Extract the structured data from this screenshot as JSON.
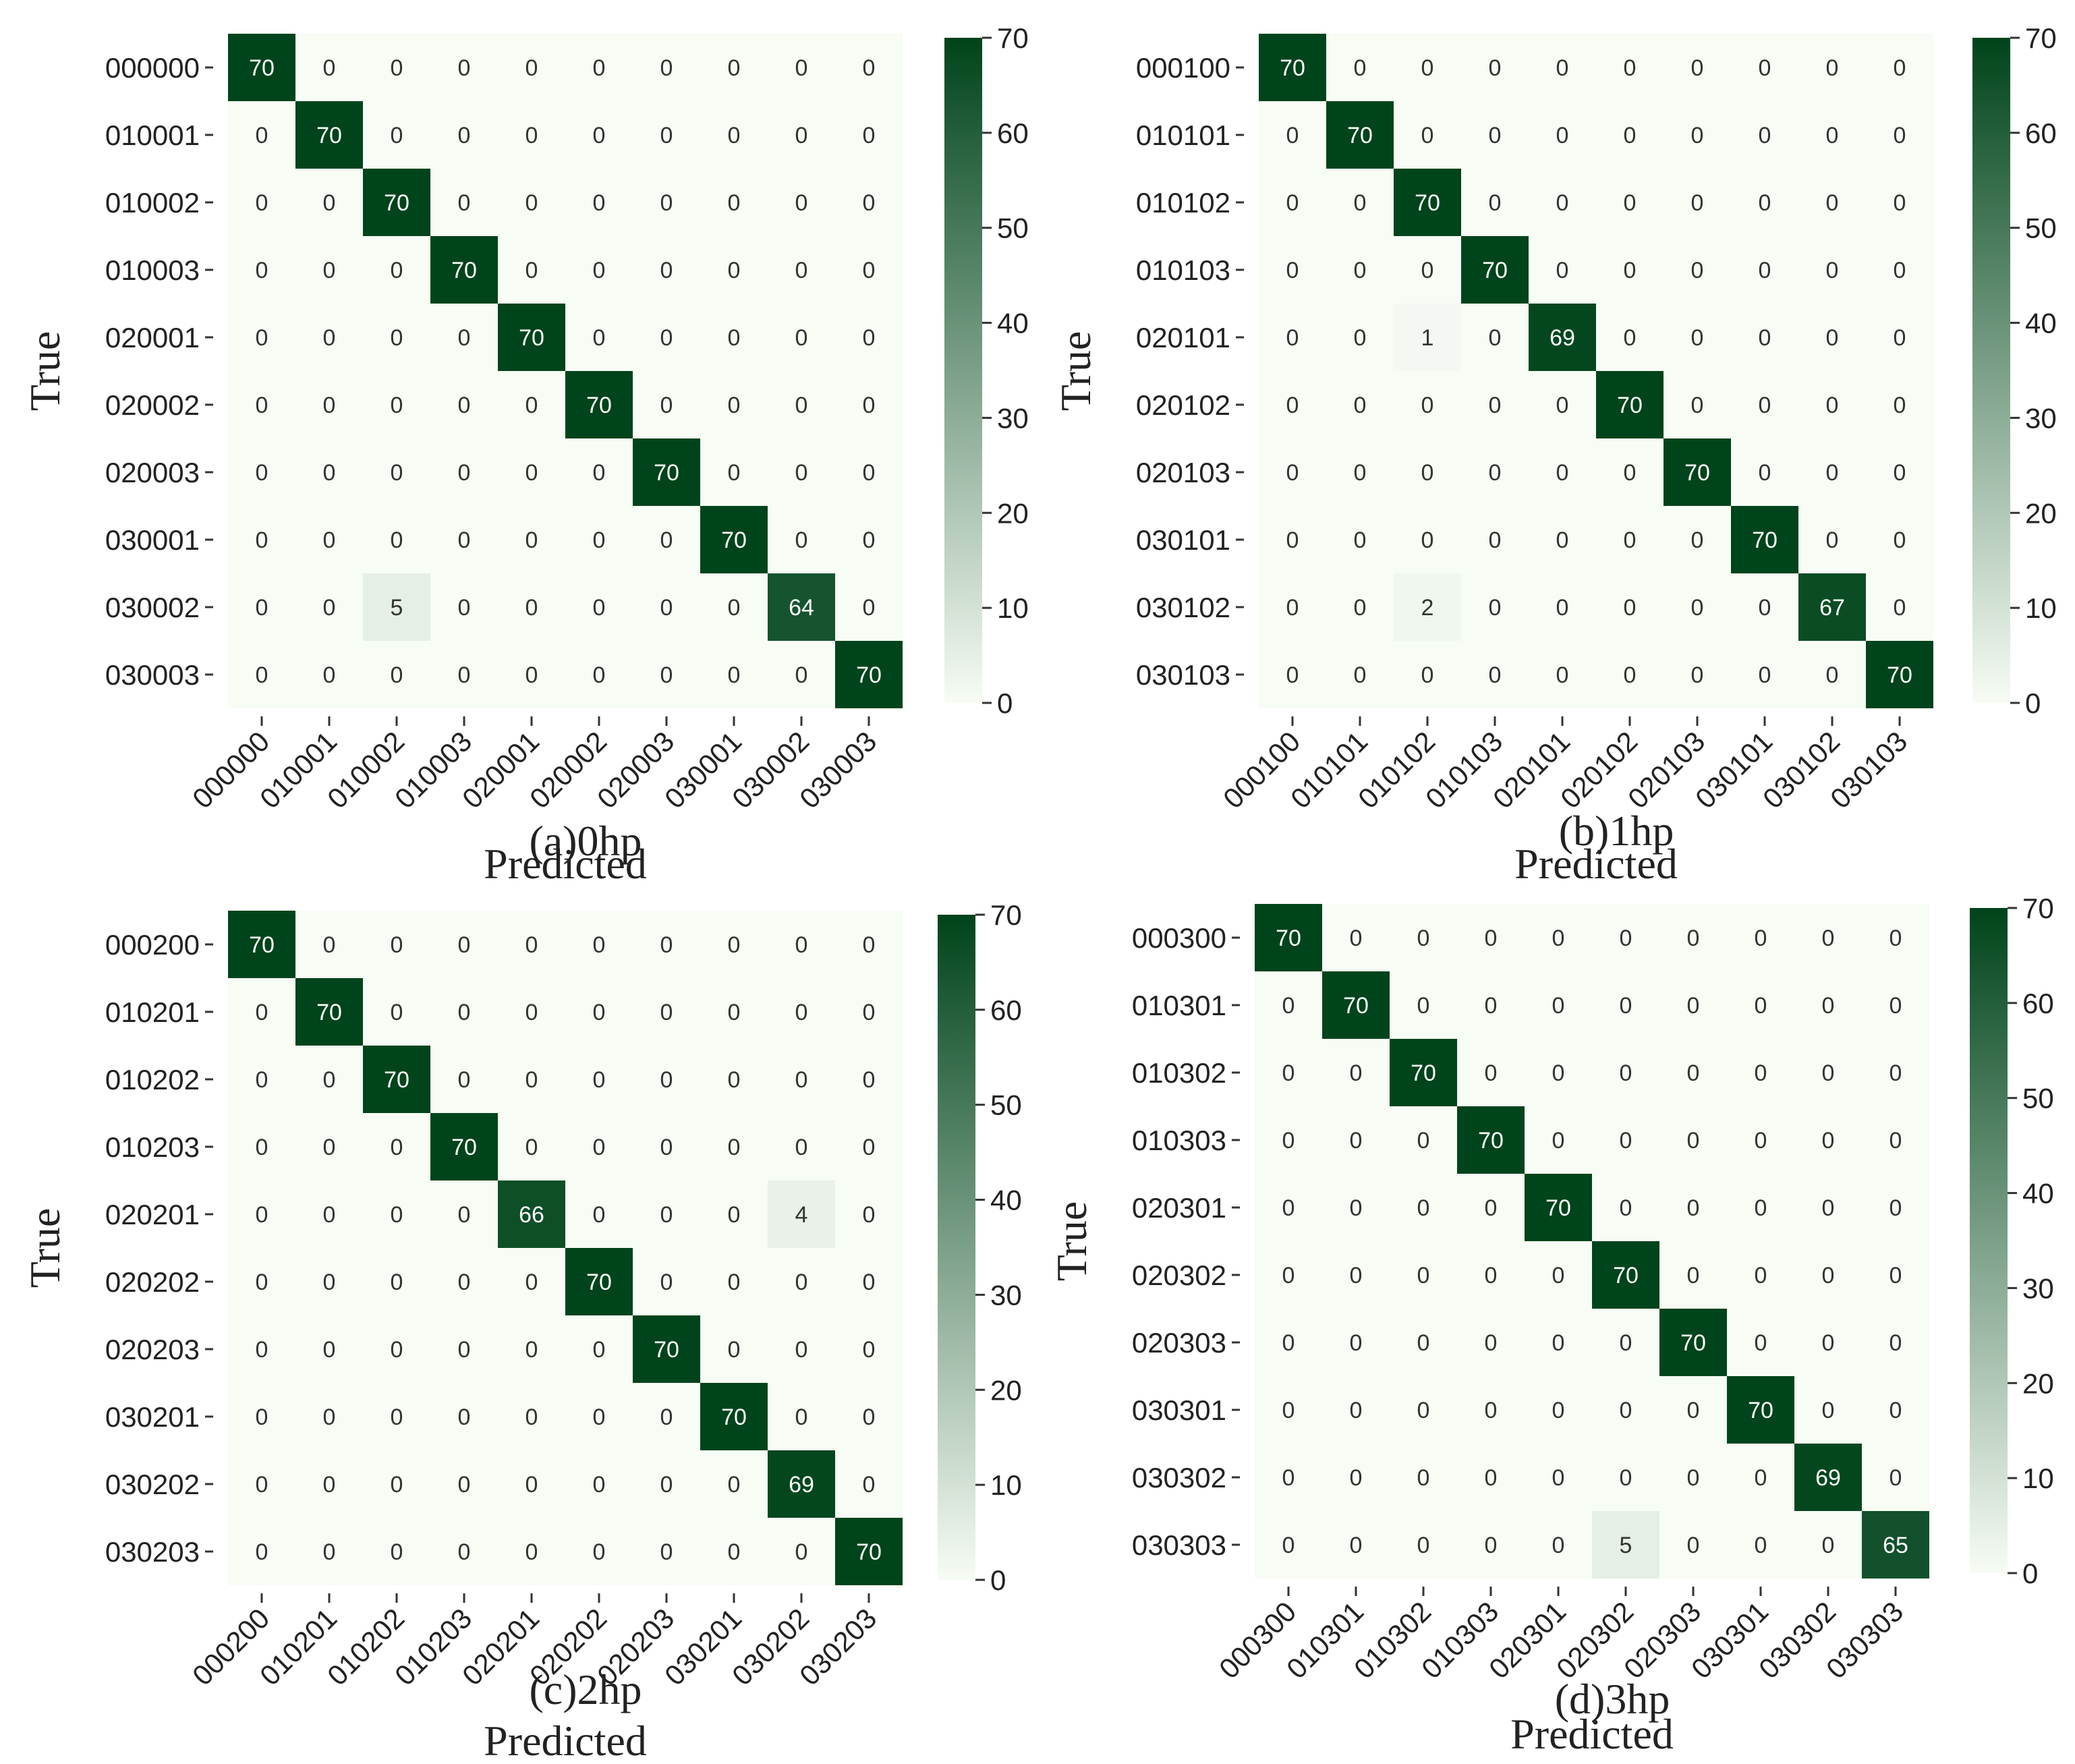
{
  "colorscale": {
    "min_color": "#f7fcf5",
    "max_color": "#00441b"
  },
  "chart_data": [
    {
      "type": "heatmap",
      "caption": "(a)0hp",
      "xlabel": "Predicted",
      "ylabel": "True",
      "x_categories": [
        "000000",
        "010001",
        "010002",
        "010003",
        "020001",
        "020002",
        "020003",
        "030001",
        "030002",
        "030003"
      ],
      "y_categories": [
        "000000",
        "010001",
        "010002",
        "010003",
        "020001",
        "020002",
        "020003",
        "030001",
        "030002",
        "030003"
      ],
      "values": [
        [
          70,
          0,
          0,
          0,
          0,
          0,
          0,
          0,
          0,
          0
        ],
        [
          0,
          70,
          0,
          0,
          0,
          0,
          0,
          0,
          0,
          0
        ],
        [
          0,
          0,
          70,
          0,
          0,
          0,
          0,
          0,
          0,
          0
        ],
        [
          0,
          0,
          0,
          70,
          0,
          0,
          0,
          0,
          0,
          0
        ],
        [
          0,
          0,
          0,
          0,
          70,
          0,
          0,
          0,
          0,
          0
        ],
        [
          0,
          0,
          0,
          0,
          0,
          70,
          0,
          0,
          0,
          0
        ],
        [
          0,
          0,
          0,
          0,
          0,
          0,
          70,
          0,
          0,
          0
        ],
        [
          0,
          0,
          0,
          0,
          0,
          0,
          0,
          70,
          0,
          0
        ],
        [
          0,
          0,
          5,
          0,
          0,
          0,
          0,
          0,
          64,
          0
        ],
        [
          0,
          0,
          0,
          0,
          0,
          0,
          0,
          0,
          0,
          70
        ]
      ],
      "colorbar": {
        "range": [
          0,
          70
        ],
        "ticks": [
          "0",
          "10",
          "20",
          "30",
          "40",
          "50",
          "60",
          "70"
        ]
      }
    },
    {
      "type": "heatmap",
      "caption": "(b)1hp",
      "xlabel": "Predicted",
      "ylabel": "True",
      "x_categories": [
        "000100",
        "010101",
        "010102",
        "010103",
        "020101",
        "020102",
        "020103",
        "030101",
        "030102",
        "030103"
      ],
      "y_categories": [
        "000100",
        "010101",
        "010102",
        "010103",
        "020101",
        "020102",
        "020103",
        "030101",
        "030102",
        "030103"
      ],
      "values": [
        [
          70,
          0,
          0,
          0,
          0,
          0,
          0,
          0,
          0,
          0
        ],
        [
          0,
          70,
          0,
          0,
          0,
          0,
          0,
          0,
          0,
          0
        ],
        [
          0,
          0,
          70,
          0,
          0,
          0,
          0,
          0,
          0,
          0
        ],
        [
          0,
          0,
          0,
          70,
          0,
          0,
          0,
          0,
          0,
          0
        ],
        [
          0,
          0,
          1,
          0,
          69,
          0,
          0,
          0,
          0,
          0
        ],
        [
          0,
          0,
          0,
          0,
          0,
          70,
          0,
          0,
          0,
          0
        ],
        [
          0,
          0,
          0,
          0,
          0,
          0,
          70,
          0,
          0,
          0
        ],
        [
          0,
          0,
          0,
          0,
          0,
          0,
          0,
          70,
          0,
          0
        ],
        [
          0,
          0,
          2,
          0,
          0,
          0,
          0,
          0,
          67,
          0
        ],
        [
          0,
          0,
          0,
          0,
          0,
          0,
          0,
          0,
          0,
          70
        ]
      ],
      "colorbar": {
        "range": [
          0,
          70
        ],
        "ticks": [
          "0",
          "10",
          "20",
          "30",
          "40",
          "50",
          "60",
          "70"
        ]
      }
    },
    {
      "type": "heatmap",
      "caption": "(c)2hp",
      "xlabel": "Predicted",
      "ylabel": "True",
      "x_categories": [
        "000200",
        "010201",
        "010202",
        "010203",
        "020201",
        "020202",
        "020203",
        "030201",
        "030202",
        "030203"
      ],
      "y_categories": [
        "000200",
        "010201",
        "010202",
        "010203",
        "020201",
        "020202",
        "020203",
        "030201",
        "030202",
        "030203"
      ],
      "values": [
        [
          70,
          0,
          0,
          0,
          0,
          0,
          0,
          0,
          0,
          0
        ],
        [
          0,
          70,
          0,
          0,
          0,
          0,
          0,
          0,
          0,
          0
        ],
        [
          0,
          0,
          70,
          0,
          0,
          0,
          0,
          0,
          0,
          0
        ],
        [
          0,
          0,
          0,
          70,
          0,
          0,
          0,
          0,
          0,
          0
        ],
        [
          0,
          0,
          0,
          0,
          66,
          0,
          0,
          0,
          4,
          0
        ],
        [
          0,
          0,
          0,
          0,
          0,
          70,
          0,
          0,
          0,
          0
        ],
        [
          0,
          0,
          0,
          0,
          0,
          0,
          70,
          0,
          0,
          0
        ],
        [
          0,
          0,
          0,
          0,
          0,
          0,
          0,
          70,
          0,
          0
        ],
        [
          0,
          0,
          0,
          0,
          0,
          0,
          0,
          0,
          69,
          0
        ],
        [
          0,
          0,
          0,
          0,
          0,
          0,
          0,
          0,
          0,
          70
        ]
      ],
      "colorbar": {
        "range": [
          0,
          70
        ],
        "ticks": [
          "0",
          "10",
          "20",
          "30",
          "40",
          "50",
          "60",
          "70"
        ]
      }
    },
    {
      "type": "heatmap",
      "caption": "(d)3hp",
      "xlabel": "Predicted",
      "ylabel": "True",
      "x_categories": [
        "000300",
        "010301",
        "010302",
        "010303",
        "020301",
        "020302",
        "020303",
        "030301",
        "030302",
        "030303"
      ],
      "y_categories": [
        "000300",
        "010301",
        "010302",
        "010303",
        "020301",
        "020302",
        "020303",
        "030301",
        "030302",
        "030303"
      ],
      "values": [
        [
          70,
          0,
          0,
          0,
          0,
          0,
          0,
          0,
          0,
          0
        ],
        [
          0,
          70,
          0,
          0,
          0,
          0,
          0,
          0,
          0,
          0
        ],
        [
          0,
          0,
          70,
          0,
          0,
          0,
          0,
          0,
          0,
          0
        ],
        [
          0,
          0,
          0,
          70,
          0,
          0,
          0,
          0,
          0,
          0
        ],
        [
          0,
          0,
          0,
          0,
          70,
          0,
          0,
          0,
          0,
          0
        ],
        [
          0,
          0,
          0,
          0,
          0,
          70,
          0,
          0,
          0,
          0
        ],
        [
          0,
          0,
          0,
          0,
          0,
          0,
          70,
          0,
          0,
          0
        ],
        [
          0,
          0,
          0,
          0,
          0,
          0,
          0,
          70,
          0,
          0
        ],
        [
          0,
          0,
          0,
          0,
          0,
          0,
          0,
          0,
          69,
          0
        ],
        [
          0,
          0,
          0,
          0,
          0,
          5,
          0,
          0,
          0,
          65
        ]
      ],
      "colorbar": {
        "range": [
          0,
          70
        ],
        "ticks": [
          "0",
          "10",
          "20",
          "30",
          "40",
          "50",
          "60",
          "70"
        ]
      }
    }
  ]
}
